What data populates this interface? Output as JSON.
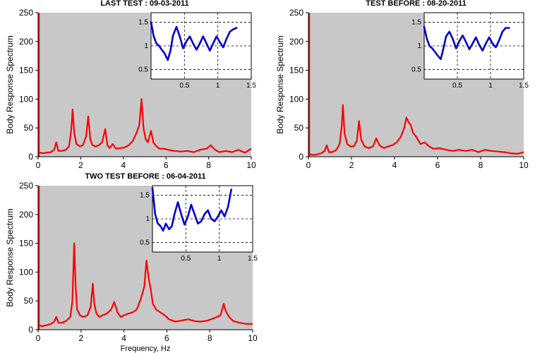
{
  "figure": {
    "xlabel": "Frequency, Hz",
    "ylabel": "Body Response Spectrum",
    "background_color": "#ffffff",
    "axes_bg_color": "#c8c8c8",
    "inset_bg_color": "#ffffff",
    "spectrum_color": "#ff0000",
    "inset_color": "#0000cc"
  },
  "chart_data": [
    {
      "type": "line",
      "title": "LAST TEST : 09-03-2011",
      "xlabel": "",
      "ylabel": "Body Response Spectrum",
      "xlim": [
        0,
        10
      ],
      "ylim": [
        0,
        250
      ],
      "xticks": [
        0,
        2,
        4,
        6,
        8,
        10
      ],
      "yticks": [
        0,
        50,
        100,
        150,
        200,
        250
      ],
      "grid": false,
      "x": [
        0,
        0.2,
        0.4,
        0.6,
        0.75,
        0.85,
        0.95,
        1.1,
        1.3,
        1.45,
        1.55,
        1.62,
        1.7,
        1.8,
        1.95,
        2.1,
        2.25,
        2.35,
        2.45,
        2.55,
        2.7,
        2.85,
        3.0,
        3.15,
        3.25,
        3.35,
        3.5,
        3.65,
        3.85,
        4.05,
        4.25,
        4.45,
        4.6,
        4.75,
        4.85,
        4.95,
        5.05,
        5.15,
        5.3,
        5.4,
        5.55,
        5.7,
        5.9,
        6.1,
        6.4,
        6.7,
        7.0,
        7.3,
        7.6,
        7.9,
        8.1,
        8.3,
        8.5,
        8.8,
        9.1,
        9.4,
        9.7,
        10.0
      ],
      "y": [
        8,
        6,
        7,
        8,
        12,
        25,
        10,
        10,
        12,
        18,
        45,
        82,
        40,
        22,
        18,
        20,
        35,
        70,
        30,
        20,
        18,
        20,
        25,
        48,
        20,
        15,
        22,
        14,
        15,
        16,
        20,
        28,
        40,
        55,
        100,
        48,
        30,
        25,
        45,
        25,
        18,
        14,
        14,
        12,
        10,
        9,
        10,
        8,
        12,
        14,
        20,
        12,
        8,
        10,
        8,
        12,
        7,
        14
      ],
      "inset": {
        "xlim": [
          0,
          1.5
        ],
        "ylim": [
          0.3,
          1.7
        ],
        "xticks": [
          0.5,
          1,
          1.5
        ],
        "yticks": [
          0.5,
          1,
          1.5
        ],
        "grid": true,
        "x": [
          0,
          0.04,
          0.08,
          0.12,
          0.16,
          0.2,
          0.25,
          0.29,
          0.33,
          0.38,
          0.43,
          0.48,
          0.53,
          0.58,
          0.63,
          0.68,
          0.73,
          0.78,
          0.83,
          0.88,
          0.93,
          0.98,
          1.03,
          1.08,
          1.13,
          1.18,
          1.23,
          1.28
        ],
        "y": [
          1.5,
          1.2,
          1.05,
          1.0,
          0.92,
          0.85,
          0.7,
          0.9,
          1.22,
          1.4,
          1.2,
          0.95,
          1.1,
          1.2,
          1.05,
          0.92,
          1.05,
          1.2,
          1.05,
          0.9,
          1.05,
          1.2,
          1.08,
          0.97,
          1.15,
          1.3,
          1.35,
          1.38
        ]
      }
    },
    {
      "type": "line",
      "title": "TEST BEFORE : 08-20-2011",
      "xlabel": "",
      "ylabel": "Body Response Spectrum",
      "xlim": [
        0,
        10
      ],
      "ylim": [
        0,
        250
      ],
      "xticks": [
        0,
        2,
        4,
        6,
        8,
        10
      ],
      "yticks": [
        0,
        50,
        100,
        150,
        200,
        250
      ],
      "grid": false,
      "x": [
        0,
        0.2,
        0.4,
        0.6,
        0.75,
        0.85,
        0.95,
        1.1,
        1.3,
        1.45,
        1.55,
        1.6,
        1.68,
        1.8,
        1.95,
        2.1,
        2.25,
        2.35,
        2.45,
        2.6,
        2.8,
        3.0,
        3.15,
        3.3,
        3.5,
        3.7,
        3.9,
        4.1,
        4.3,
        4.45,
        4.55,
        4.65,
        4.75,
        4.85,
        5.0,
        5.2,
        5.4,
        5.6,
        5.8,
        6.1,
        6.4,
        6.7,
        7.0,
        7.3,
        7.6,
        7.9,
        8.2,
        8.5,
        8.8,
        9.1,
        9.4,
        9.7,
        10.0
      ],
      "y": [
        5,
        3,
        4,
        6,
        10,
        20,
        8,
        8,
        12,
        22,
        55,
        90,
        40,
        22,
        18,
        18,
        28,
        62,
        30,
        18,
        15,
        18,
        32,
        20,
        15,
        18,
        20,
        25,
        35,
        50,
        68,
        60,
        55,
        42,
        35,
        22,
        25,
        18,
        14,
        15,
        12,
        10,
        12,
        10,
        12,
        8,
        12,
        10,
        9,
        8,
        6,
        5,
        8
      ],
      "inset": {
        "xlim": [
          0,
          1.5
        ],
        "ylim": [
          0.3,
          1.7
        ],
        "xticks": [
          0.5,
          1,
          1.5
        ],
        "yticks": [
          0.5,
          1,
          1.5
        ],
        "grid": true,
        "x": [
          0,
          0.04,
          0.08,
          0.12,
          0.16,
          0.2,
          0.25,
          0.29,
          0.33,
          0.38,
          0.43,
          0.48,
          0.53,
          0.58,
          0.63,
          0.68,
          0.73,
          0.78,
          0.83,
          0.88,
          0.93,
          0.98,
          1.03,
          1.08,
          1.13,
          1.18,
          1.23,
          1.28
        ],
        "y": [
          1.4,
          1.15,
          1.0,
          0.95,
          0.88,
          0.8,
          0.72,
          0.95,
          1.2,
          1.3,
          1.15,
          0.95,
          1.1,
          1.22,
          1.08,
          0.93,
          1.05,
          1.18,
          1.02,
          0.9,
          1.05,
          1.18,
          1.05,
          0.97,
          1.12,
          1.3,
          1.38,
          1.38
        ]
      }
    },
    {
      "type": "line",
      "title": "TWO TEST BEFORE : 06-04-2011",
      "xlabel": "Frequency, Hz",
      "ylabel": "Body Response Spectrum",
      "xlim": [
        0,
        10
      ],
      "ylim": [
        0,
        250
      ],
      "xticks": [
        0,
        2,
        4,
        6,
        8,
        10
      ],
      "yticks": [
        0,
        50,
        100,
        150,
        200,
        250
      ],
      "grid": false,
      "x": [
        0,
        0.2,
        0.4,
        0.6,
        0.75,
        0.85,
        0.95,
        1.1,
        1.3,
        1.5,
        1.6,
        1.68,
        1.75,
        1.82,
        1.95,
        2.1,
        2.3,
        2.45,
        2.55,
        2.62,
        2.72,
        2.85,
        3.0,
        3.2,
        3.4,
        3.55,
        3.7,
        3.85,
        4.0,
        4.2,
        4.4,
        4.6,
        4.8,
        4.95,
        5.05,
        5.15,
        5.25,
        5.35,
        5.5,
        5.7,
        5.9,
        6.1,
        6.4,
        6.7,
        7.0,
        7.3,
        7.6,
        7.9,
        8.2,
        8.5,
        8.65,
        8.75,
        8.9,
        9.1,
        9.4,
        9.7,
        10.0
      ],
      "y": [
        8,
        6,
        8,
        10,
        14,
        22,
        12,
        12,
        15,
        22,
        50,
        150,
        75,
        35,
        25,
        22,
        25,
        40,
        80,
        45,
        28,
        22,
        25,
        28,
        35,
        48,
        30,
        22,
        25,
        28,
        30,
        35,
        55,
        75,
        120,
        90,
        70,
        45,
        35,
        30,
        25,
        18,
        14,
        16,
        18,
        15,
        14,
        16,
        20,
        25,
        45,
        32,
        22,
        15,
        12,
        10,
        10
      ],
      "inset": {
        "xlim": [
          0,
          1.5
        ],
        "ylim": [
          0.3,
          1.7
        ],
        "xticks": [
          0.5,
          1,
          1.5
        ],
        "yticks": [
          0.5,
          1,
          1.5
        ],
        "grid": true,
        "x": [
          0,
          0.04,
          0.08,
          0.12,
          0.16,
          0.2,
          0.25,
          0.29,
          0.33,
          0.38,
          0.43,
          0.48,
          0.53,
          0.58,
          0.63,
          0.68,
          0.73,
          0.78,
          0.83,
          0.88,
          0.93,
          0.98,
          1.03,
          1.08,
          1.13,
          1.18
        ],
        "y": [
          1.65,
          1.1,
          0.9,
          0.85,
          0.75,
          0.9,
          0.78,
          0.85,
          1.1,
          1.35,
          1.1,
          0.88,
          1.05,
          1.3,
          1.1,
          0.9,
          0.95,
          1.1,
          1.18,
          1.0,
          0.95,
          1.05,
          1.18,
          1.05,
          1.25,
          1.62
        ]
      }
    }
  ]
}
